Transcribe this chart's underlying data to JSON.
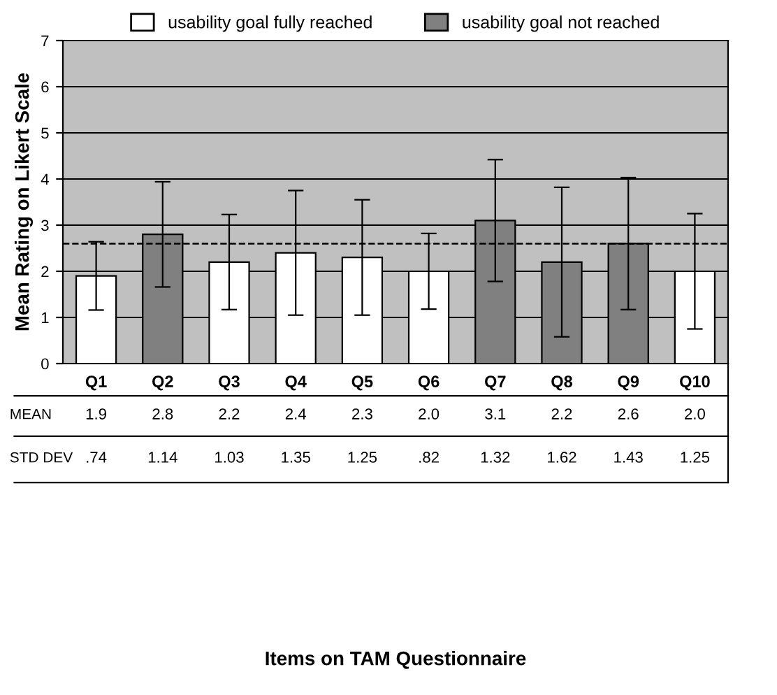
{
  "chart_data": {
    "type": "bar",
    "ylabel": "Mean Rating on Likert Scale",
    "categories": [
      "Q1",
      "Q2",
      "Q3",
      "Q4",
      "Q5",
      "Q6",
      "Q7",
      "Q8",
      "Q9",
      "Q10"
    ],
    "series": [
      {
        "name": "usability goal fully reached",
        "color": "#ffffff",
        "values": [
          1.9,
          null,
          2.2,
          2.4,
          2.3,
          2.0,
          null,
          null,
          null,
          2.0
        ],
        "value_labels": [
          "1.9",
          null,
          "2.2",
          "2.4",
          "2.3",
          "2.0",
          null,
          null,
          null,
          "2.0"
        ],
        "errors": [
          0.74,
          null,
          1.03,
          1.35,
          1.25,
          0.82,
          null,
          null,
          null,
          1.25
        ]
      },
      {
        "name": "usability goal not reached",
        "color": "#808080",
        "values": [
          null,
          2.8,
          null,
          null,
          null,
          null,
          3.1,
          2.2,
          2.6,
          null
        ],
        "value_labels": [
          null,
          "2.8",
          null,
          null,
          null,
          null,
          "3.1",
          "2.2",
          "2.6",
          null
        ],
        "errors": [
          null,
          1.14,
          null,
          null,
          null,
          null,
          1.32,
          1.62,
          1.43,
          null
        ]
      }
    ],
    "ylim": [
      0,
      7
    ],
    "yticks": [
      0,
      1,
      2,
      3,
      4,
      5,
      6,
      7
    ],
    "grid": "y",
    "legend": "top",
    "ref_lines": [
      {
        "axis": "y",
        "value": 2.6,
        "line_style": "dashed",
        "color": "#000000"
      }
    ],
    "annotations": [
      "MEAN",
      "STD DEV",
      ".74",
      "1.14",
      "1.03",
      "1.35",
      "1.25",
      ".82",
      "1.32",
      "1.62",
      "1.43",
      "1.25",
      "Items on TAM Questionnaire"
    ]
  }
}
